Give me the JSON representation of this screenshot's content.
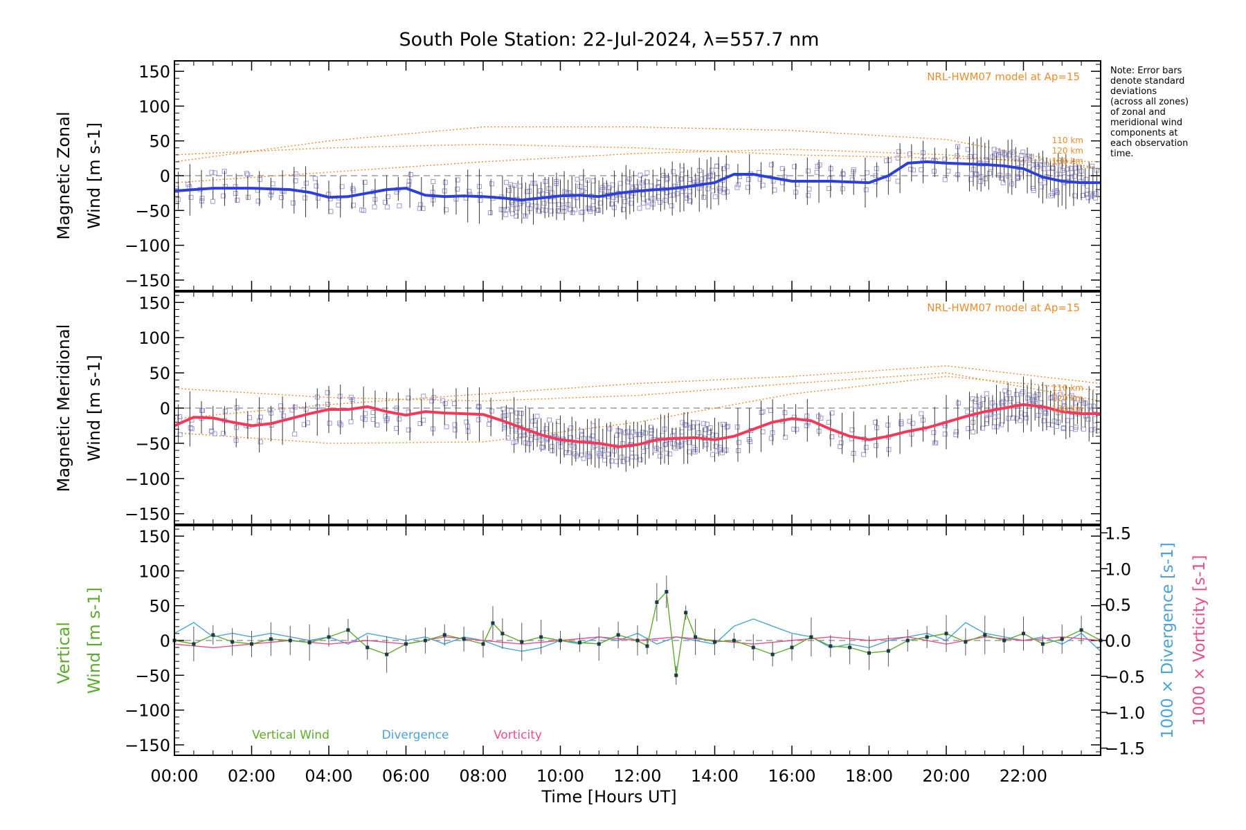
{
  "title": "South Pole Station: 22-Jul-2024, λ=557.7 nm",
  "note": [
    "Note: Error bars",
    "denote standard",
    "deviations",
    "(across all zones)",
    "of zonal and",
    "meridional wind",
    "components at",
    "each observation",
    "time."
  ],
  "xaxis": {
    "label": "Time [Hours UT]",
    "ticks": [
      "00:00",
      "02:00",
      "04:00",
      "06:00",
      "08:00",
      "10:00",
      "12:00",
      "14:00",
      "16:00",
      "18:00",
      "20:00",
      "22:00"
    ],
    "range": [
      0,
      24
    ]
  },
  "colors": {
    "zonal": "#2e3fd6",
    "meridional": "#f2395a",
    "vertical": "#5cab2a",
    "divergence": "#4aa3d8",
    "vorticity": "#ea4f8a",
    "model": "#ef8a2a",
    "scatter": "#9b98d8"
  },
  "chart_data": [
    {
      "type": "line",
      "panel": "zonal",
      "ylabel": [
        "Magnetic Zonal",
        "Wind [m s-1]"
      ],
      "ylim": [
        -165,
        165
      ],
      "yticks": [
        "150",
        "100",
        "50",
        "0",
        "−50",
        "−100",
        "−150"
      ],
      "model_label": "NRL-HWM07 model at Ap=15",
      "model_altitudes": [
        "110 km",
        "120 km",
        "130 km"
      ],
      "series": [
        {
          "name": "Zonal wind",
          "x": [
            0,
            0.5,
            1,
            1.5,
            2,
            2.5,
            3,
            3.5,
            4,
            4.5,
            5,
            5.5,
            6,
            6.5,
            7,
            7.5,
            8,
            8.5,
            9,
            9.5,
            10,
            10.5,
            11,
            11.5,
            12,
            12.5,
            13,
            13.5,
            14,
            14.5,
            15,
            15.5,
            16,
            16.5,
            17,
            17.5,
            18,
            18.5,
            19,
            19.5,
            20,
            20.5,
            21,
            21.5,
            22,
            22.5,
            23,
            23.5,
            24
          ],
          "values": [
            -22,
            -20,
            -18,
            -18,
            -18,
            -19,
            -20,
            -24,
            -31,
            -30,
            -25,
            -20,
            -18,
            -28,
            -30,
            -29,
            -30,
            -32,
            -35,
            -32,
            -29,
            -28,
            -30,
            -25,
            -22,
            -20,
            -18,
            -14,
            -10,
            2,
            2,
            -3,
            -8,
            -8,
            -8,
            -9,
            -10,
            0,
            18,
            20,
            18,
            17,
            16,
            14,
            10,
            -2,
            -8,
            -10,
            -10
          ]
        },
        {
          "name": "NRL-HWM07 110 km",
          "x": [
            0,
            4,
            8,
            12,
            16,
            20,
            24
          ],
          "values": [
            30,
            40,
            45,
            40,
            30,
            25,
            20
          ]
        },
        {
          "name": "NRL-HWM07 120 km",
          "x": [
            0,
            4,
            8,
            12,
            16,
            20,
            24
          ],
          "values": [
            -10,
            5,
            20,
            32,
            38,
            30,
            10
          ]
        },
        {
          "name": "NRL-HWM07 130 km",
          "x": [
            0,
            4,
            8,
            12,
            16,
            20,
            24
          ],
          "values": [
            20,
            50,
            70,
            70,
            65,
            52,
            10
          ]
        }
      ]
    },
    {
      "type": "line",
      "panel": "meridional",
      "ylabel": [
        "Magnetic Meridional",
        "Wind [m s-1]"
      ],
      "ylim": [
        -165,
        165
      ],
      "yticks": [
        "150",
        "100",
        "50",
        "0",
        "−50",
        "−100",
        "−150"
      ],
      "model_label": "NRL-HWM07 model at Ap=15",
      "model_altitudes": [
        "110 km",
        "120 km",
        "130 km"
      ],
      "series": [
        {
          "name": "Meridional wind",
          "x": [
            0,
            0.5,
            1,
            1.5,
            2,
            2.5,
            3,
            3.5,
            4,
            4.5,
            5,
            5.5,
            6,
            6.5,
            7,
            7.5,
            8,
            8.5,
            9,
            9.5,
            10,
            10.5,
            11,
            11.5,
            12,
            12.5,
            13,
            13.5,
            14,
            14.5,
            15,
            15.5,
            16,
            16.5,
            17,
            17.5,
            18,
            18.5,
            19,
            19.5,
            20,
            20.5,
            21,
            21.5,
            22,
            22.5,
            23,
            23.5,
            24
          ],
          "values": [
            -25,
            -13,
            -14,
            -20,
            -25,
            -22,
            -15,
            -8,
            -2,
            -2,
            2,
            -5,
            -10,
            -5,
            -7,
            -8,
            -9,
            -18,
            -28,
            -38,
            -45,
            -48,
            -50,
            -55,
            -52,
            -45,
            -43,
            -42,
            -45,
            -40,
            -30,
            -20,
            -15,
            -18,
            -30,
            -40,
            -45,
            -40,
            -33,
            -28,
            -20,
            -12,
            -5,
            0,
            5,
            2,
            -5,
            -8,
            -8
          ]
        },
        {
          "name": "NRL-HWM07 110 km",
          "x": [
            0,
            4,
            8,
            12,
            16,
            20,
            24
          ],
          "values": [
            28,
            15,
            10,
            18,
            35,
            50,
            10
          ]
        },
        {
          "name": "NRL-HWM07 120 km",
          "x": [
            0,
            4,
            8,
            12,
            16,
            20,
            24
          ],
          "values": [
            -35,
            -50,
            -48,
            -20,
            20,
            45,
            25
          ]
        },
        {
          "name": "NRL-HWM07 130 km",
          "x": [
            0,
            4,
            8,
            12,
            16,
            20,
            24
          ],
          "values": [
            -15,
            5,
            20,
            35,
            45,
            60,
            35
          ]
        }
      ]
    },
    {
      "type": "line",
      "panel": "vertical",
      "ylabel_top": "Vertical",
      "ylabel_bottom": "Wind [m s-1]",
      "ylim": [
        -165,
        165
      ],
      "yticks": [
        "150",
        "100",
        "50",
        "0",
        "−50",
        "−100",
        "−150"
      ],
      "y2lim": [
        -1.6,
        1.6
      ],
      "y2ticks": [
        "1.5",
        "1.0",
        "0.5",
        "0.0",
        "−0.5",
        "−1.0",
        "−1.5"
      ],
      "y2label_divergence": "1000 × Divergence [s-1]",
      "y2label_vorticity": "1000 × Vorticity [s-1]",
      "legend": [
        "Vertical Wind",
        "Divergence",
        "Vorticity"
      ],
      "series": [
        {
          "name": "Vertical Wind",
          "x": [
            0,
            0.5,
            1,
            1.5,
            2,
            2.5,
            3,
            3.5,
            4,
            4.5,
            5,
            5.5,
            6,
            6.5,
            7,
            7.5,
            8,
            8.25,
            8.5,
            9,
            9.5,
            10,
            10.5,
            11,
            11.5,
            12,
            12.25,
            12.5,
            12.75,
            13,
            13.25,
            13.5,
            14,
            14.5,
            15,
            15.5,
            16,
            16.5,
            17,
            17.5,
            18,
            18.5,
            19,
            19.5,
            20,
            20.5,
            21,
            21.5,
            22,
            22.5,
            23,
            23.5,
            24
          ],
          "values": [
            0,
            -5,
            8,
            -2,
            -5,
            2,
            0,
            -3,
            5,
            15,
            -10,
            -20,
            -5,
            0,
            8,
            2,
            -5,
            25,
            10,
            -2,
            5,
            0,
            -3,
            -5,
            8,
            0,
            -8,
            55,
            70,
            -50,
            40,
            5,
            -2,
            0,
            -10,
            -20,
            -10,
            5,
            -8,
            -10,
            -18,
            -15,
            0,
            5,
            10,
            -2,
            8,
            0,
            10,
            -5,
            2,
            15,
            0
          ]
        },
        {
          "name": "Divergence",
          "x": [
            0,
            0.5,
            1,
            1.5,
            2,
            2.5,
            3,
            3.5,
            4,
            4.5,
            5,
            5.5,
            6,
            6.5,
            7,
            7.5,
            8,
            8.5,
            9,
            9.5,
            10,
            10.5,
            11,
            11.5,
            12,
            12.5,
            13,
            13.5,
            14,
            14.5,
            15,
            15.5,
            16,
            16.5,
            17,
            17.5,
            18,
            18.5,
            19,
            19.5,
            20,
            20.5,
            21,
            21.5,
            22,
            22.5,
            23,
            23.5,
            24
          ],
          "values": [
            0.1,
            0.25,
            0.05,
            0.1,
            0.05,
            0.1,
            0.05,
            0.0,
            0.05,
            -0.05,
            0.1,
            0.05,
            0.0,
            0.05,
            -0.05,
            0.05,
            0.0,
            -0.1,
            -0.15,
            -0.1,
            0.0,
            -0.05,
            0.05,
            0.0,
            0.1,
            -0.05,
            0.05,
            0.0,
            -0.05,
            0.2,
            0.3,
            0.2,
            0.1,
            0.05,
            -0.1,
            -0.05,
            -0.1,
            0.0,
            0.05,
            0.1,
            0.0,
            0.25,
            0.1,
            0.05,
            0.0,
            0.05,
            -0.05,
            0.1,
            -0.15
          ]
        },
        {
          "name": "Vorticity",
          "x": [
            0,
            1,
            2,
            3,
            4,
            5,
            6,
            7,
            8,
            9,
            10,
            11,
            12,
            13,
            14,
            15,
            16,
            17,
            18,
            19,
            20,
            21,
            22,
            23,
            24
          ],
          "values": [
            -0.05,
            -0.1,
            -0.05,
            0.0,
            -0.05,
            0.0,
            -0.05,
            0.05,
            0.0,
            -0.05,
            0.0,
            0.05,
            0.0,
            0.05,
            0.0,
            -0.05,
            0.0,
            0.05,
            0.0,
            0.05,
            -0.05,
            0.05,
            0.0,
            0.05,
            0.0
          ]
        }
      ]
    }
  ]
}
